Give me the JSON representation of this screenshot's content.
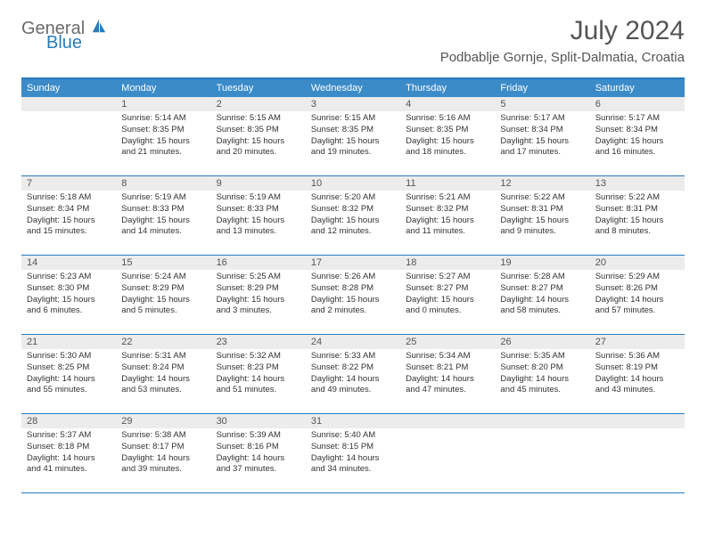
{
  "logo": {
    "text1": "General",
    "text2": "Blue"
  },
  "title": "July 2024",
  "location": "Podbablje Gornje, Split-Dalmatia, Croatia",
  "colors": {
    "header_bar": "#3b8bc9",
    "border": "#2a7bbb",
    "daynum_bg": "#ececec",
    "text_dark": "#333333",
    "text_med": "#555555",
    "logo_gray": "#6b6b6b",
    "logo_blue": "#2a7bbb",
    "white": "#ffffff"
  },
  "weekday_labels": [
    "Sunday",
    "Monday",
    "Tuesday",
    "Wednesday",
    "Thursday",
    "Friday",
    "Saturday"
  ],
  "weeks": [
    [
      {
        "num": "",
        "sunrise": "",
        "sunset": "",
        "day1": "",
        "day2": ""
      },
      {
        "num": "1",
        "sunrise": "Sunrise: 5:14 AM",
        "sunset": "Sunset: 8:35 PM",
        "day1": "Daylight: 15 hours",
        "day2": "and 21 minutes."
      },
      {
        "num": "2",
        "sunrise": "Sunrise: 5:15 AM",
        "sunset": "Sunset: 8:35 PM",
        "day1": "Daylight: 15 hours",
        "day2": "and 20 minutes."
      },
      {
        "num": "3",
        "sunrise": "Sunrise: 5:15 AM",
        "sunset": "Sunset: 8:35 PM",
        "day1": "Daylight: 15 hours",
        "day2": "and 19 minutes."
      },
      {
        "num": "4",
        "sunrise": "Sunrise: 5:16 AM",
        "sunset": "Sunset: 8:35 PM",
        "day1": "Daylight: 15 hours",
        "day2": "and 18 minutes."
      },
      {
        "num": "5",
        "sunrise": "Sunrise: 5:17 AM",
        "sunset": "Sunset: 8:34 PM",
        "day1": "Daylight: 15 hours",
        "day2": "and 17 minutes."
      },
      {
        "num": "6",
        "sunrise": "Sunrise: 5:17 AM",
        "sunset": "Sunset: 8:34 PM",
        "day1": "Daylight: 15 hours",
        "day2": "and 16 minutes."
      }
    ],
    [
      {
        "num": "7",
        "sunrise": "Sunrise: 5:18 AM",
        "sunset": "Sunset: 8:34 PM",
        "day1": "Daylight: 15 hours",
        "day2": "and 15 minutes."
      },
      {
        "num": "8",
        "sunrise": "Sunrise: 5:19 AM",
        "sunset": "Sunset: 8:33 PM",
        "day1": "Daylight: 15 hours",
        "day2": "and 14 minutes."
      },
      {
        "num": "9",
        "sunrise": "Sunrise: 5:19 AM",
        "sunset": "Sunset: 8:33 PM",
        "day1": "Daylight: 15 hours",
        "day2": "and 13 minutes."
      },
      {
        "num": "10",
        "sunrise": "Sunrise: 5:20 AM",
        "sunset": "Sunset: 8:32 PM",
        "day1": "Daylight: 15 hours",
        "day2": "and 12 minutes."
      },
      {
        "num": "11",
        "sunrise": "Sunrise: 5:21 AM",
        "sunset": "Sunset: 8:32 PM",
        "day1": "Daylight: 15 hours",
        "day2": "and 11 minutes."
      },
      {
        "num": "12",
        "sunrise": "Sunrise: 5:22 AM",
        "sunset": "Sunset: 8:31 PM",
        "day1": "Daylight: 15 hours",
        "day2": "and 9 minutes."
      },
      {
        "num": "13",
        "sunrise": "Sunrise: 5:22 AM",
        "sunset": "Sunset: 8:31 PM",
        "day1": "Daylight: 15 hours",
        "day2": "and 8 minutes."
      }
    ],
    [
      {
        "num": "14",
        "sunrise": "Sunrise: 5:23 AM",
        "sunset": "Sunset: 8:30 PM",
        "day1": "Daylight: 15 hours",
        "day2": "and 6 minutes."
      },
      {
        "num": "15",
        "sunrise": "Sunrise: 5:24 AM",
        "sunset": "Sunset: 8:29 PM",
        "day1": "Daylight: 15 hours",
        "day2": "and 5 minutes."
      },
      {
        "num": "16",
        "sunrise": "Sunrise: 5:25 AM",
        "sunset": "Sunset: 8:29 PM",
        "day1": "Daylight: 15 hours",
        "day2": "and 3 minutes."
      },
      {
        "num": "17",
        "sunrise": "Sunrise: 5:26 AM",
        "sunset": "Sunset: 8:28 PM",
        "day1": "Daylight: 15 hours",
        "day2": "and 2 minutes."
      },
      {
        "num": "18",
        "sunrise": "Sunrise: 5:27 AM",
        "sunset": "Sunset: 8:27 PM",
        "day1": "Daylight: 15 hours",
        "day2": "and 0 minutes."
      },
      {
        "num": "19",
        "sunrise": "Sunrise: 5:28 AM",
        "sunset": "Sunset: 8:27 PM",
        "day1": "Daylight: 14 hours",
        "day2": "and 58 minutes."
      },
      {
        "num": "20",
        "sunrise": "Sunrise: 5:29 AM",
        "sunset": "Sunset: 8:26 PM",
        "day1": "Daylight: 14 hours",
        "day2": "and 57 minutes."
      }
    ],
    [
      {
        "num": "21",
        "sunrise": "Sunrise: 5:30 AM",
        "sunset": "Sunset: 8:25 PM",
        "day1": "Daylight: 14 hours",
        "day2": "and 55 minutes."
      },
      {
        "num": "22",
        "sunrise": "Sunrise: 5:31 AM",
        "sunset": "Sunset: 8:24 PM",
        "day1": "Daylight: 14 hours",
        "day2": "and 53 minutes."
      },
      {
        "num": "23",
        "sunrise": "Sunrise: 5:32 AM",
        "sunset": "Sunset: 8:23 PM",
        "day1": "Daylight: 14 hours",
        "day2": "and 51 minutes."
      },
      {
        "num": "24",
        "sunrise": "Sunrise: 5:33 AM",
        "sunset": "Sunset: 8:22 PM",
        "day1": "Daylight: 14 hours",
        "day2": "and 49 minutes."
      },
      {
        "num": "25",
        "sunrise": "Sunrise: 5:34 AM",
        "sunset": "Sunset: 8:21 PM",
        "day1": "Daylight: 14 hours",
        "day2": "and 47 minutes."
      },
      {
        "num": "26",
        "sunrise": "Sunrise: 5:35 AM",
        "sunset": "Sunset: 8:20 PM",
        "day1": "Daylight: 14 hours",
        "day2": "and 45 minutes."
      },
      {
        "num": "27",
        "sunrise": "Sunrise: 5:36 AM",
        "sunset": "Sunset: 8:19 PM",
        "day1": "Daylight: 14 hours",
        "day2": "and 43 minutes."
      }
    ],
    [
      {
        "num": "28",
        "sunrise": "Sunrise: 5:37 AM",
        "sunset": "Sunset: 8:18 PM",
        "day1": "Daylight: 14 hours",
        "day2": "and 41 minutes."
      },
      {
        "num": "29",
        "sunrise": "Sunrise: 5:38 AM",
        "sunset": "Sunset: 8:17 PM",
        "day1": "Daylight: 14 hours",
        "day2": "and 39 minutes."
      },
      {
        "num": "30",
        "sunrise": "Sunrise: 5:39 AM",
        "sunset": "Sunset: 8:16 PM",
        "day1": "Daylight: 14 hours",
        "day2": "and 37 minutes."
      },
      {
        "num": "31",
        "sunrise": "Sunrise: 5:40 AM",
        "sunset": "Sunset: 8:15 PM",
        "day1": "Daylight: 14 hours",
        "day2": "and 34 minutes."
      },
      {
        "num": "",
        "sunrise": "",
        "sunset": "",
        "day1": "",
        "day2": ""
      },
      {
        "num": "",
        "sunrise": "",
        "sunset": "",
        "day1": "",
        "day2": ""
      },
      {
        "num": "",
        "sunrise": "",
        "sunset": "",
        "day1": "",
        "day2": ""
      }
    ]
  ]
}
